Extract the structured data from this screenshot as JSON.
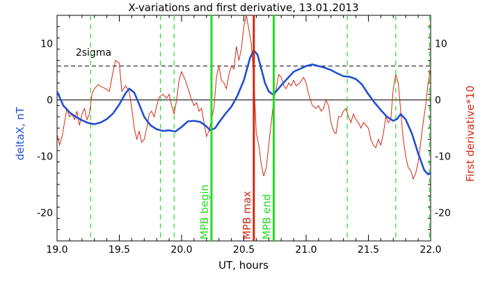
{
  "chart_data": {
    "type": "line",
    "title": "X-variations and first derivative, 13.01.2013",
    "xlabel": "UT, hours",
    "ylabel_left": "deltaX, nT",
    "ylabel_right": "First derivative*10",
    "xlim": [
      19.0,
      22.0
    ],
    "ylim": [
      -25,
      15
    ],
    "x_ticks": [
      "19.0",
      "19.5",
      "20.0",
      "20.5",
      "21.0",
      "21.5",
      "22.0"
    ],
    "x_tick_values": [
      19.0,
      19.5,
      20.0,
      20.5,
      21.0,
      21.5,
      22.0
    ],
    "y_ticks": [
      "10",
      "0",
      "-10",
      "-20"
    ],
    "y_tick_values": [
      10,
      0,
      -10,
      -20
    ],
    "y_ticks_right": [
      "10",
      "0",
      "-10",
      "-20"
    ],
    "zero_line": 0,
    "sigma_level": 6,
    "sigma_label": "2sigma",
    "colors": {
      "deltaX": "#1f4fd0",
      "derivative": "#d02810",
      "mpb_markers": "#22dd22",
      "mpb_max": "#d02810",
      "left_label": "#1f4fd0",
      "right_label": "#d02810"
    },
    "series": [
      {
        "name": "deltaX, nT",
        "color": "#1f4fd0",
        "points": [
          [
            19.0,
            1.5
          ],
          [
            19.02,
            0.5
          ],
          [
            19.05,
            -1.0
          ],
          [
            19.1,
            -2.2
          ],
          [
            19.15,
            -3.0
          ],
          [
            19.2,
            -3.6
          ],
          [
            19.25,
            -4.1
          ],
          [
            19.3,
            -4.3
          ],
          [
            19.35,
            -4.0
          ],
          [
            19.4,
            -3.4
          ],
          [
            19.45,
            -2.4
          ],
          [
            19.5,
            -0.8
          ],
          [
            19.55,
            1.2
          ],
          [
            19.58,
            2.0
          ],
          [
            19.62,
            1.3
          ],
          [
            19.66,
            -0.8
          ],
          [
            19.7,
            -3.0
          ],
          [
            19.75,
            -4.5
          ],
          [
            19.8,
            -5.2
          ],
          [
            19.85,
            -5.5
          ],
          [
            19.9,
            -5.4
          ],
          [
            19.95,
            -5.6
          ],
          [
            20.0,
            -4.8
          ],
          [
            20.05,
            -3.8
          ],
          [
            20.1,
            -3.7
          ],
          [
            20.15,
            -3.9
          ],
          [
            20.2,
            -4.7
          ],
          [
            20.23,
            -5.4
          ],
          [
            20.27,
            -5.0
          ],
          [
            20.3,
            -4.0
          ],
          [
            20.35,
            -2.5
          ],
          [
            20.4,
            -1.2
          ],
          [
            20.45,
            0.8
          ],
          [
            20.5,
            3.5
          ],
          [
            20.55,
            7.5
          ],
          [
            20.58,
            8.8
          ],
          [
            20.61,
            8.0
          ],
          [
            20.64,
            5.5
          ],
          [
            20.67,
            3.0
          ],
          [
            20.7,
            1.5
          ],
          [
            20.73,
            1.0
          ],
          [
            20.76,
            1.5
          ],
          [
            20.8,
            2.6
          ],
          [
            20.85,
            3.8
          ],
          [
            20.9,
            5.0
          ],
          [
            20.95,
            5.5
          ],
          [
            21.0,
            6.0
          ],
          [
            21.05,
            6.3
          ],
          [
            21.1,
            6.0
          ],
          [
            21.15,
            5.7
          ],
          [
            21.2,
            5.3
          ],
          [
            21.25,
            4.7
          ],
          [
            21.3,
            4.2
          ],
          [
            21.35,
            4.1
          ],
          [
            21.4,
            3.7
          ],
          [
            21.45,
            2.7
          ],
          [
            21.5,
            1.0
          ],
          [
            21.55,
            -0.5
          ],
          [
            21.6,
            -1.8
          ],
          [
            21.65,
            -3.0
          ],
          [
            21.7,
            -3.7
          ],
          [
            21.73,
            -3.4
          ],
          [
            21.76,
            -2.5
          ],
          [
            21.8,
            -3.5
          ],
          [
            21.85,
            -6.0
          ],
          [
            21.9,
            -9.5
          ],
          [
            21.95,
            -12.5
          ],
          [
            21.98,
            -13.2
          ],
          [
            22.0,
            -13.0
          ]
        ]
      },
      {
        "name": "First derivative*10",
        "color": "#d02810",
        "points": [
          [
            19.0,
            -6.0
          ],
          [
            19.02,
            -8.0
          ],
          [
            19.04,
            -6.5
          ],
          [
            19.06,
            -4.0
          ],
          [
            19.08,
            -1.5
          ],
          [
            19.1,
            -3.0
          ],
          [
            19.12,
            -2.5
          ],
          [
            19.14,
            -3.5
          ],
          [
            19.16,
            -2.0
          ],
          [
            19.18,
            -4.5
          ],
          [
            19.2,
            -2.5
          ],
          [
            19.22,
            -1.5
          ],
          [
            19.24,
            -3.5
          ],
          [
            19.26,
            -2.5
          ],
          [
            19.28,
            1.0
          ],
          [
            19.3,
            2.0
          ],
          [
            19.33,
            2.7
          ],
          [
            19.36,
            2.3
          ],
          [
            19.39,
            2.0
          ],
          [
            19.42,
            1.5
          ],
          [
            19.45,
            5.0
          ],
          [
            19.47,
            7.0
          ],
          [
            19.5,
            6.5
          ],
          [
            19.52,
            1.5
          ],
          [
            19.55,
            2.5
          ],
          [
            19.58,
            1.5
          ],
          [
            19.6,
            -1.5
          ],
          [
            19.62,
            -5.0
          ],
          [
            19.64,
            -7.0
          ],
          [
            19.66,
            -5.5
          ],
          [
            19.68,
            -7.5
          ],
          [
            19.7,
            -7.0
          ],
          [
            19.72,
            -5.0
          ],
          [
            19.74,
            -2.5
          ],
          [
            19.76,
            -2.0
          ],
          [
            19.78,
            -3.0
          ],
          [
            19.8,
            -1.0
          ],
          [
            19.82,
            0.5
          ],
          [
            19.85,
            1.0
          ],
          [
            19.88,
            0.3
          ],
          [
            19.9,
            1.0
          ],
          [
            19.92,
            -1.0
          ],
          [
            19.94,
            -2.5
          ],
          [
            19.96,
            0.0
          ],
          [
            19.98,
            3.5
          ],
          [
            20.0,
            5.0
          ],
          [
            20.03,
            3.5
          ],
          [
            20.06,
            1.5
          ],
          [
            20.08,
            0.0
          ],
          [
            20.1,
            -1.0
          ],
          [
            20.12,
            -0.5
          ],
          [
            20.14,
            -2.0
          ],
          [
            20.16,
            -1.5
          ],
          [
            20.18,
            -4.0
          ],
          [
            20.2,
            -6.5
          ],
          [
            20.22,
            -5.5
          ],
          [
            20.24,
            -3.5
          ],
          [
            20.26,
            -1.5
          ],
          [
            20.28,
            4.0
          ],
          [
            20.3,
            6.0
          ],
          [
            20.32,
            3.5
          ],
          [
            20.34,
            3.0
          ],
          [
            20.36,
            2.0
          ],
          [
            20.38,
            4.5
          ],
          [
            20.4,
            6.0
          ],
          [
            20.42,
            5.5
          ],
          [
            20.44,
            9.5
          ],
          [
            20.46,
            7.0
          ],
          [
            20.48,
            9.0
          ],
          [
            20.5,
            13.0
          ],
          [
            20.52,
            15.0
          ],
          [
            20.54,
            12.5
          ],
          [
            20.56,
            10.0
          ],
          [
            20.58,
            4.0
          ],
          [
            20.6,
            -6.0
          ],
          [
            20.62,
            -8.0
          ],
          [
            20.64,
            -11.5
          ],
          [
            20.66,
            -13.5
          ],
          [
            20.68,
            -12.0
          ],
          [
            20.7,
            -8.0
          ],
          [
            20.72,
            -4.0
          ],
          [
            20.74,
            0.0
          ],
          [
            20.76,
            2.0
          ],
          [
            20.78,
            4.5
          ],
          [
            20.8,
            4.0
          ],
          [
            20.82,
            2.5
          ],
          [
            20.84,
            2.0
          ],
          [
            20.86,
            3.0
          ],
          [
            20.88,
            2.5
          ],
          [
            20.9,
            3.5
          ],
          [
            20.92,
            2.5
          ],
          [
            20.95,
            3.0
          ],
          [
            20.98,
            4.0
          ],
          [
            21.0,
            3.0
          ],
          [
            21.02,
            1.0
          ],
          [
            21.05,
            -1.0
          ],
          [
            21.08,
            -1.5
          ],
          [
            21.1,
            -1.0
          ],
          [
            21.12,
            -2.0
          ],
          [
            21.14,
            -1.5
          ],
          [
            21.16,
            0.0
          ],
          [
            21.18,
            -1.0
          ],
          [
            21.2,
            -4.0
          ],
          [
            21.22,
            -5.5
          ],
          [
            21.24,
            -6.0
          ],
          [
            21.26,
            -3.0
          ],
          [
            21.28,
            -3.0
          ],
          [
            21.3,
            -2.0
          ],
          [
            21.32,
            -1.5
          ],
          [
            21.34,
            -3.0
          ],
          [
            21.36,
            -4.0
          ],
          [
            21.38,
            -2.5
          ],
          [
            21.4,
            -3.5
          ],
          [
            21.42,
            -4.0
          ],
          [
            21.44,
            -5.0
          ],
          [
            21.46,
            -4.0
          ],
          [
            21.48,
            -4.5
          ],
          [
            21.5,
            -5.0
          ],
          [
            21.52,
            -7.0
          ],
          [
            21.54,
            -8.0
          ],
          [
            21.56,
            -8.5
          ],
          [
            21.58,
            -7.0
          ],
          [
            21.6,
            -8.0
          ],
          [
            21.62,
            -6.0
          ],
          [
            21.64,
            -3.0
          ],
          [
            21.66,
            -4.0
          ],
          [
            21.68,
            -3.5
          ],
          [
            21.7,
            2.0
          ],
          [
            21.72,
            4.5
          ],
          [
            21.74,
            3.0
          ],
          [
            21.76,
            -2.0
          ],
          [
            21.78,
            -7.0
          ],
          [
            21.8,
            -10.0
          ],
          [
            21.82,
            -12.0
          ],
          [
            21.84,
            -12.5
          ],
          [
            21.86,
            -14.0
          ],
          [
            21.88,
            -13.0
          ],
          [
            21.9,
            -11.0
          ],
          [
            21.92,
            -7.5
          ],
          [
            21.94,
            -4.0
          ],
          [
            21.96,
            -1.0
          ],
          [
            21.98,
            3.0
          ],
          [
            22.0,
            5.5
          ]
        ]
      }
    ],
    "vlines_dashed": [
      19.27,
      19.83,
      19.94,
      21.33,
      21.72,
      21.99
    ],
    "markers": [
      {
        "label": "MPB begin",
        "x": 20.24,
        "color": "#22dd22"
      },
      {
        "label": "MPB max",
        "x": 20.58,
        "color": "#d02810"
      },
      {
        "label": "MPB end",
        "x": 20.74,
        "color": "#22dd22"
      }
    ]
  }
}
